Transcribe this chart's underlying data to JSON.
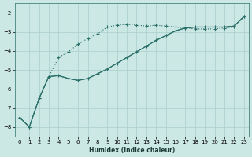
{
  "xlabel": "Humidex (Indice chaleur)",
  "bg_color": "#cce8e5",
  "grid_color": "#aacfcc",
  "line_color": "#2a7068",
  "xlim": [
    -0.5,
    23.5
  ],
  "ylim": [
    -8.5,
    -1.5
  ],
  "xticks": [
    0,
    1,
    2,
    3,
    4,
    5,
    6,
    7,
    8,
    9,
    10,
    11,
    12,
    13,
    14,
    15,
    16,
    17,
    18,
    19,
    20,
    21,
    22,
    23
  ],
  "yticks": [
    -8,
    -7,
    -6,
    -5,
    -4,
    -3,
    -2
  ],
  "line1_x": [
    0,
    1,
    2,
    3,
    4,
    5,
    6,
    7,
    8,
    9,
    10,
    11,
    12,
    13,
    14,
    15,
    16,
    17,
    18,
    19,
    20,
    21,
    22,
    23
  ],
  "line1_y": [
    -7.5,
    -8.0,
    -6.5,
    -5.35,
    -4.35,
    -4.05,
    -3.65,
    -3.35,
    -3.1,
    -2.75,
    -2.65,
    -2.6,
    -2.65,
    -2.7,
    -2.65,
    -2.7,
    -2.75,
    -2.8,
    -2.85,
    -2.85,
    -2.85,
    -2.8,
    -2.75,
    -2.2
  ],
  "line2_x": [
    0,
    1,
    2,
    3,
    4,
    5,
    6,
    7,
    8,
    9,
    10,
    11,
    12,
    13,
    14,
    15,
    16,
    17,
    18,
    19,
    20,
    21,
    22,
    23
  ],
  "line2_y": [
    -7.5,
    -8.0,
    -6.5,
    -5.35,
    -5.3,
    -5.45,
    -5.55,
    -5.45,
    -5.2,
    -4.95,
    -4.65,
    -4.35,
    -4.05,
    -3.75,
    -3.45,
    -3.2,
    -2.95,
    -2.8,
    -2.75,
    -2.75,
    -2.75,
    -2.75,
    -2.7,
    -2.2
  ],
  "line3_x": [
    0,
    1,
    2,
    3,
    4,
    5,
    6,
    7,
    8,
    9,
    10,
    11,
    12,
    13,
    14,
    15,
    16,
    17,
    18,
    19,
    20,
    21,
    22,
    23
  ],
  "line3_y": [
    -7.5,
    -8.0,
    -6.5,
    -5.35,
    -5.3,
    -5.45,
    -5.55,
    -5.45,
    -5.2,
    -4.95,
    -4.65,
    -4.35,
    -4.05,
    -3.75,
    -3.45,
    -3.2,
    -2.95,
    -2.8,
    -2.75,
    -2.75,
    -2.75,
    -2.75,
    -2.7,
    -2.2
  ]
}
